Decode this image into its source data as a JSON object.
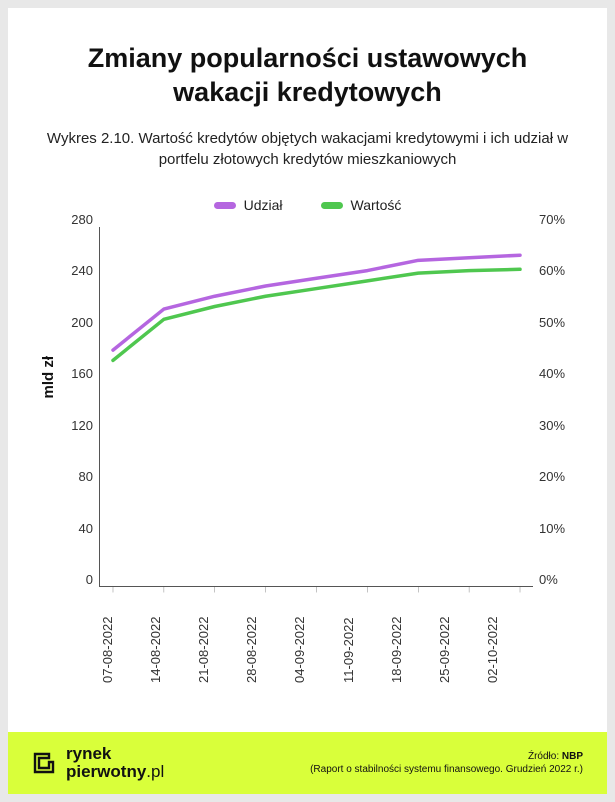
{
  "title": "Zmiany popularności ustawowych wakacji kredytowych",
  "subtitle": "Wykres 2.10. Wartość kredytów objętych wakacjami kredytowymi i ich udział w portfelu złotowych kredytów mieszkaniowych",
  "legend": {
    "series1_label": "Udział",
    "series2_label": "Wartość",
    "series1_color": "#b566e0",
    "series2_color": "#4fc74f"
  },
  "chart": {
    "type": "line",
    "y_left": {
      "label": "mld zł",
      "min": 0,
      "max": 280,
      "step": 40,
      "ticks": [
        "280",
        "240",
        "200",
        "160",
        "120",
        "80",
        "40",
        "0"
      ]
    },
    "y_right": {
      "min": 0,
      "max": 70,
      "step": 10,
      "ticks": [
        "70%",
        "60%",
        "50%",
        "40%",
        "30%",
        "20%",
        "10%",
        "0%"
      ]
    },
    "x_categories": [
      "07-08-2022",
      "14-08-2022",
      "21-08-2022",
      "28-08-2022",
      "04-09-2022",
      "11-09-2022",
      "18-09-2022",
      "25-09-2022",
      "02-10-2022"
    ],
    "series": [
      {
        "name": "Udział",
        "axis": "right",
        "color": "#b566e0",
        "line_width": 3.5,
        "values": [
          46,
          54,
          56.5,
          58.5,
          60,
          61.5,
          63.5,
          64,
          64.5
        ]
      },
      {
        "name": "Wartość",
        "axis": "left",
        "color": "#4fc74f",
        "line_width": 3.5,
        "values": [
          176,
          208,
          218,
          226,
          232,
          238,
          244,
          246,
          247
        ]
      }
    ],
    "axis_color": "#555555",
    "grid": false,
    "background": "#ffffff",
    "tick_fontsize": 13,
    "label_fontsize": 15,
    "title_fontsize": 27
  },
  "footer": {
    "brand_line1": "rynek",
    "brand_line2": "pierwotny",
    "brand_suffix": ".pl",
    "brand_icon_color": "#111111",
    "footer_bg": "#d9ff3a",
    "source_label": "Źródło:",
    "source_name": "NBP",
    "source_detail": "(Raport o stabilności systemu finansowego. Grudzień 2022 r.)"
  }
}
